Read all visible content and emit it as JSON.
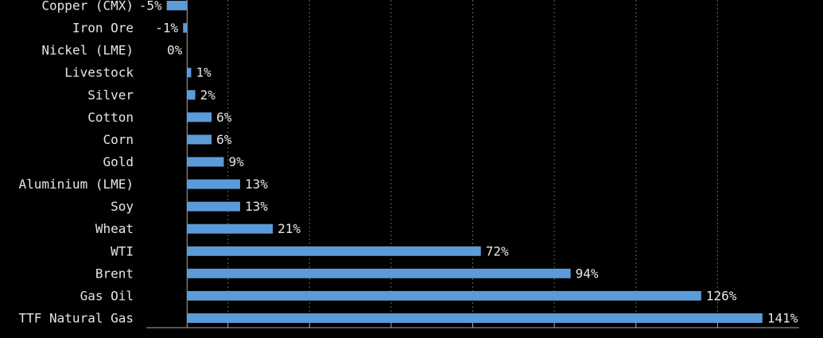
{
  "chart_data": {
    "type": "hbar",
    "categories": [
      "Copper (CMX)",
      "Iron Ore",
      "Nickel (LME)",
      "Livestock",
      "Silver",
      "Cotton",
      "Corn",
      "Gold",
      "Aluminium (LME)",
      "Soy",
      "Wheat",
      "WTI",
      "Brent",
      "Gas Oil",
      "TTF Natural Gas"
    ],
    "values": [
      -5,
      -1,
      0,
      1,
      2,
      6,
      6,
      9,
      13,
      13,
      21,
      72,
      94,
      126,
      141
    ],
    "value_labels": [
      "-5%",
      "-1%",
      "0%",
      "1%",
      "2%",
      "6%",
      "6%",
      "9%",
      "13%",
      "13%",
      "21%",
      "72%",
      "94%",
      "126%",
      "141%"
    ],
    "color": "#5b9bd8",
    "xlim": [
      -10,
      150
    ],
    "xticks": [
      10,
      30,
      50,
      70,
      90,
      110,
      130
    ],
    "grid": true
  }
}
